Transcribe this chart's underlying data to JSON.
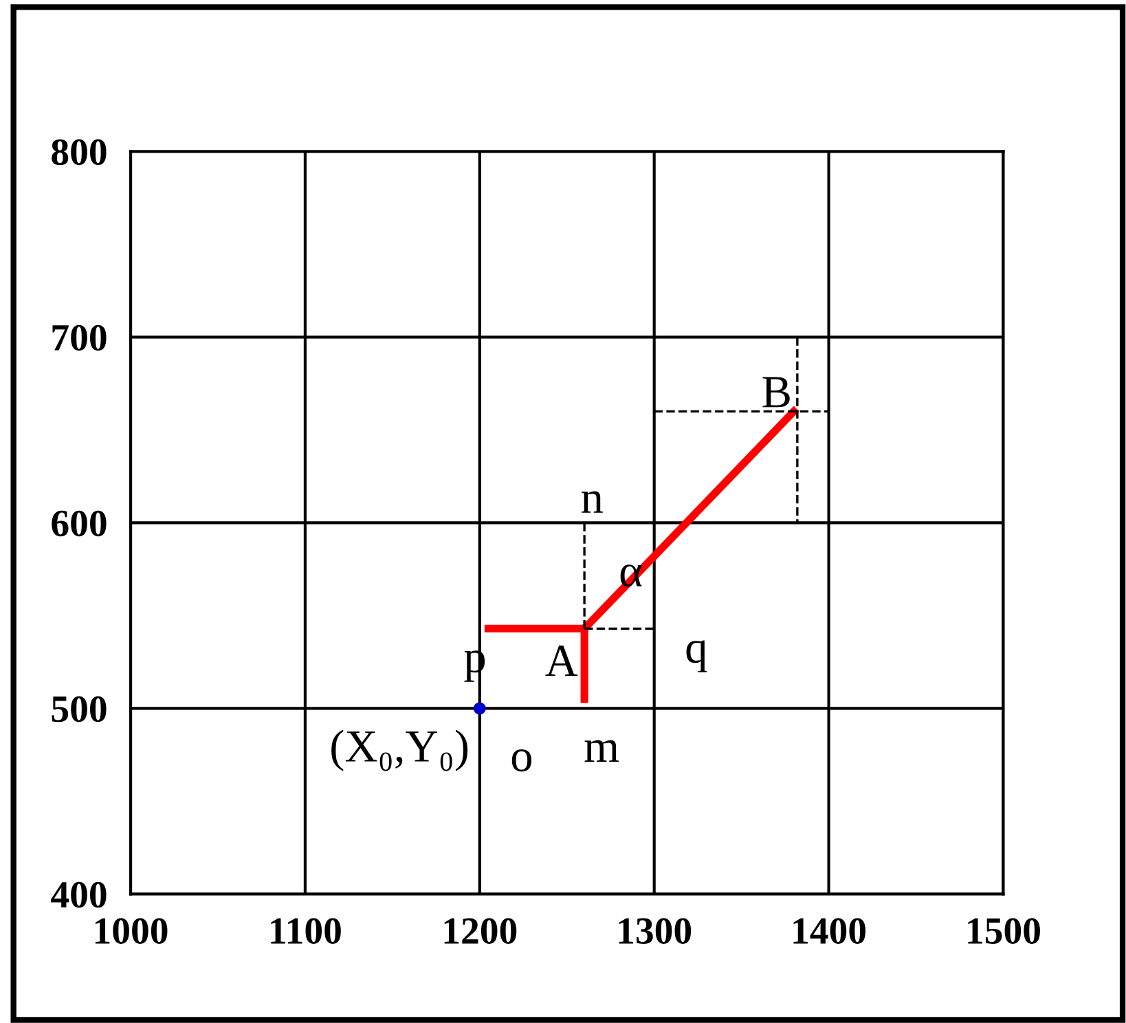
{
  "chart_data": {
    "type": "line",
    "xlim": [
      1000,
      1500
    ],
    "ylim": [
      400,
      800
    ],
    "xticks": [
      1000,
      1100,
      1200,
      1300,
      1400,
      1500
    ],
    "yticks": [
      400,
      500,
      600,
      700,
      800
    ],
    "grid": true,
    "series": [
      {
        "color": "#ff0000",
        "x": [
          1260,
          1380
        ],
        "values": [
          543,
          660
        ],
        "line_style": "solid"
      },
      {
        "color": "#ff0000",
        "x": [
          1205,
          1260
        ],
        "values": [
          543,
          543
        ],
        "line_style": "solid"
      },
      {
        "color": "#ff0000",
        "x": [
          1260,
          1260
        ],
        "values": [
          543,
          505
        ],
        "line_style": "solid"
      },
      {
        "color": "#000000",
        "x": [
          1260,
          1260
        ],
        "values": [
          543,
          600
        ],
        "line_style": "dashed"
      },
      {
        "color": "#000000",
        "x": [
          1260,
          1300
        ],
        "values": [
          543,
          543
        ],
        "line_style": "dashed"
      },
      {
        "color": "#000000",
        "x": [
          1300,
          1400
        ],
        "values": [
          660,
          660
        ],
        "line_style": "dashed"
      },
      {
        "color": "#000000",
        "x": [
          1382,
          1382
        ],
        "values": [
          700,
          600
        ],
        "line_style": "dashed"
      },
      {
        "type": "scatter",
        "color": "#0000cc",
        "x": [
          1200
        ],
        "values": [
          500
        ],
        "marker": "circle"
      }
    ],
    "annotations": [
      {
        "text": "n",
        "x": 1260,
        "y": 600
      },
      {
        "text": "α",
        "x": 1280,
        "y": 562.5
      },
      {
        "text": "p",
        "x": 1205,
        "y": 543
      },
      {
        "text": "A",
        "x": 1260,
        "y": 543
      },
      {
        "text": "q",
        "x": 1300,
        "y": 543
      },
      {
        "text": "B",
        "x": 1380,
        "y": 660
      },
      {
        "text": "o",
        "x": 1200,
        "y": 500
      },
      {
        "text": "m",
        "x": 1260,
        "y": 505
      },
      {
        "text": "(X₀,Y₀)",
        "x": 1200,
        "y": 500
      }
    ]
  }
}
